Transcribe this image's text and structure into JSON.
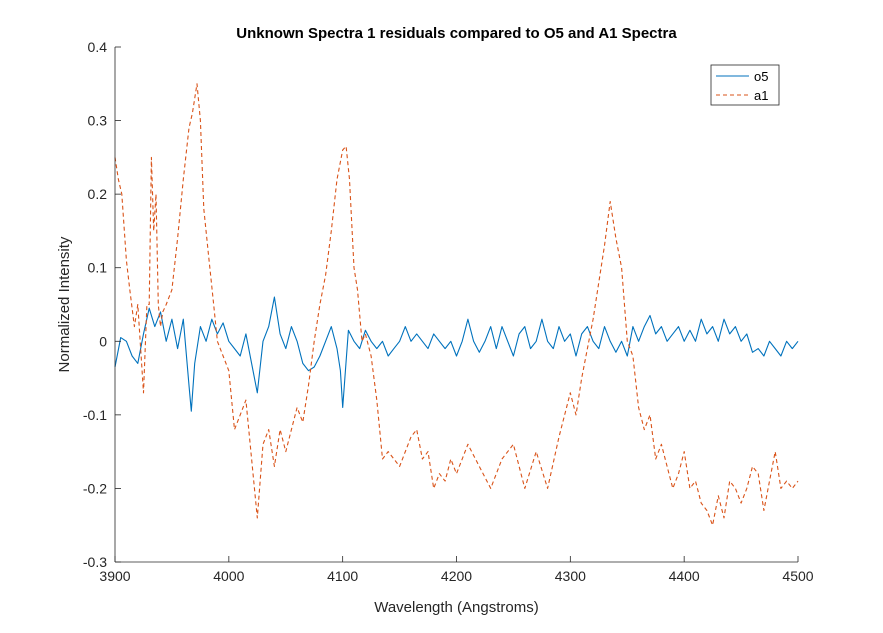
{
  "chart_data": {
    "type": "line",
    "title": "Unknown Spectra 1 residuals compared to O5 and A1 Spectra",
    "xlabel": "Wavelength (Angstroms)",
    "ylabel": "Normalized Intensity",
    "xlim": [
      3900,
      4500
    ],
    "ylim": [
      -0.3,
      0.4
    ],
    "xticks": [
      3900,
      4000,
      4100,
      4200,
      4300,
      4400,
      4500
    ],
    "xtick_labels": [
      "3900",
      "4000",
      "4100",
      "4200",
      "4300",
      "4400",
      "4500"
    ],
    "yticks": [
      -0.3,
      -0.2,
      -0.1,
      0,
      0.1,
      0.2,
      0.3,
      0.4
    ],
    "ytick_labels": [
      "-0.3",
      "-0.2",
      "-0.1",
      "0",
      "0.1",
      "0.2",
      "0.3",
      "0.4"
    ],
    "grid": false,
    "legend_position": "top-right",
    "series": [
      {
        "name": "o5",
        "color": "#0072BD",
        "style": "solid",
        "x": [
          3900,
          3905,
          3910,
          3915,
          3920,
          3925,
          3930,
          3935,
          3940,
          3945,
          3950,
          3955,
          3960,
          3965,
          3967,
          3970,
          3975,
          3980,
          3985,
          3990,
          3995,
          4000,
          4005,
          4010,
          4015,
          4020,
          4025,
          4030,
          4035,
          4040,
          4045,
          4050,
          4055,
          4060,
          4065,
          4070,
          4075,
          4080,
          4085,
          4090,
          4095,
          4098,
          4100,
          4105,
          4110,
          4115,
          4120,
          4125,
          4130,
          4135,
          4140,
          4145,
          4150,
          4155,
          4160,
          4165,
          4170,
          4175,
          4180,
          4185,
          4190,
          4195,
          4200,
          4205,
          4210,
          4215,
          4220,
          4225,
          4230,
          4235,
          4240,
          4245,
          4250,
          4255,
          4260,
          4265,
          4270,
          4275,
          4280,
          4285,
          4290,
          4295,
          4300,
          4305,
          4310,
          4315,
          4320,
          4325,
          4330,
          4335,
          4340,
          4345,
          4350,
          4355,
          4360,
          4365,
          4370,
          4375,
          4380,
          4385,
          4390,
          4395,
          4400,
          4405,
          4410,
          4415,
          4420,
          4425,
          4430,
          4435,
          4440,
          4445,
          4450,
          4455,
          4460,
          4465,
          4470,
          4475,
          4480,
          4485,
          4490,
          4495,
          4500
        ],
        "y": [
          -0.035,
          0.005,
          0.0,
          -0.02,
          -0.03,
          0.01,
          0.045,
          0.02,
          0.04,
          0.0,
          0.03,
          -0.01,
          0.03,
          -0.06,
          -0.095,
          -0.03,
          0.02,
          0.0,
          0.03,
          0.01,
          0.025,
          0.0,
          -0.01,
          -0.02,
          0.01,
          -0.03,
          -0.07,
          0.0,
          0.02,
          0.06,
          0.01,
          -0.01,
          0.02,
          0.0,
          -0.03,
          -0.04,
          -0.035,
          -0.02,
          0.0,
          0.02,
          -0.01,
          -0.04,
          -0.09,
          0.015,
          0.0,
          -0.01,
          0.015,
          0.0,
          -0.01,
          0.0,
          -0.02,
          -0.01,
          0.0,
          0.02,
          0.0,
          0.01,
          0.0,
          -0.01,
          0.01,
          0.0,
          -0.01,
          0.0,
          -0.02,
          0.0,
          0.03,
          0.0,
          -0.015,
          0.0,
          0.02,
          -0.01,
          0.02,
          0.0,
          -0.02,
          0.01,
          0.02,
          -0.01,
          0.0,
          0.03,
          0.0,
          -0.01,
          0.02,
          0.0,
          0.01,
          -0.02,
          0.01,
          0.02,
          0.0,
          -0.01,
          0.02,
          0.0,
          -0.015,
          0.0,
          -0.02,
          0.02,
          0.0,
          0.02,
          0.035,
          0.01,
          0.02,
          0.0,
          0.01,
          0.02,
          0.0,
          0.015,
          0.0,
          0.03,
          0.01,
          0.02,
          0.0,
          0.03,
          0.01,
          0.02,
          0.0,
          0.01,
          -0.015,
          -0.01,
          -0.02,
          0.0,
          -0.01,
          -0.02,
          0.0,
          -0.01,
          0.0
        ]
      },
      {
        "name": "a1",
        "color": "#D95319",
        "style": "dashed",
        "x": [
          3900,
          3903,
          3906,
          3910,
          3913,
          3917,
          3920,
          3925,
          3928,
          3930,
          3932,
          3934,
          3936,
          3938,
          3940,
          3942,
          3945,
          3950,
          3955,
          3960,
          3965,
          3968,
          3972,
          3975,
          3978,
          3982,
          3986,
          3990,
          3995,
          4000,
          4005,
          4010,
          4015,
          4020,
          4025,
          4030,
          4035,
          4040,
          4045,
          4050,
          4055,
          4060,
          4065,
          4070,
          4075,
          4080,
          4085,
          4090,
          4095,
          4100,
          4103,
          4106,
          4110,
          4113,
          4117,
          4120,
          4125,
          4130,
          4135,
          4140,
          4150,
          4160,
          4165,
          4170,
          4175,
          4180,
          4185,
          4190,
          4195,
          4200,
          4210,
          4220,
          4230,
          4240,
          4250,
          4260,
          4270,
          4280,
          4290,
          4300,
          4305,
          4310,
          4315,
          4320,
          4325,
          4330,
          4335,
          4340,
          4345,
          4350,
          4355,
          4360,
          4365,
          4370,
          4375,
          4380,
          4385,
          4390,
          4395,
          4400,
          4405,
          4410,
          4415,
          4420,
          4425,
          4430,
          4435,
          4440,
          4445,
          4450,
          4455,
          4460,
          4465,
          4470,
          4475,
          4480,
          4485,
          4490,
          4495,
          4500
        ],
        "y": [
          0.25,
          0.22,
          0.2,
          0.11,
          0.07,
          0.02,
          0.05,
          -0.07,
          0.05,
          0.05,
          0.25,
          0.15,
          0.2,
          0.05,
          0.02,
          0.04,
          0.05,
          0.07,
          0.14,
          0.22,
          0.29,
          0.31,
          0.35,
          0.3,
          0.18,
          0.12,
          0.06,
          0.0,
          -0.02,
          -0.04,
          -0.12,
          -0.1,
          -0.08,
          -0.16,
          -0.24,
          -0.14,
          -0.12,
          -0.17,
          -0.12,
          -0.15,
          -0.12,
          -0.09,
          -0.11,
          -0.06,
          0.0,
          0.05,
          0.09,
          0.15,
          0.22,
          0.26,
          0.265,
          0.22,
          0.1,
          0.07,
          0.0,
          0.01,
          -0.02,
          -0.08,
          -0.16,
          -0.15,
          -0.17,
          -0.13,
          -0.12,
          -0.16,
          -0.15,
          -0.2,
          -0.18,
          -0.19,
          -0.16,
          -0.18,
          -0.14,
          -0.17,
          -0.2,
          -0.16,
          -0.14,
          -0.2,
          -0.15,
          -0.2,
          -0.13,
          -0.07,
          -0.1,
          -0.05,
          -0.01,
          0.03,
          0.08,
          0.13,
          0.19,
          0.14,
          0.1,
          0.0,
          -0.02,
          -0.09,
          -0.12,
          -0.1,
          -0.16,
          -0.14,
          -0.17,
          -0.2,
          -0.18,
          -0.15,
          -0.2,
          -0.19,
          -0.22,
          -0.23,
          -0.25,
          -0.21,
          -0.24,
          -0.19,
          -0.2,
          -0.22,
          -0.2,
          -0.17,
          -0.18,
          -0.23,
          -0.19,
          -0.15,
          -0.2,
          -0.19,
          -0.2,
          -0.19
        ]
      }
    ]
  }
}
